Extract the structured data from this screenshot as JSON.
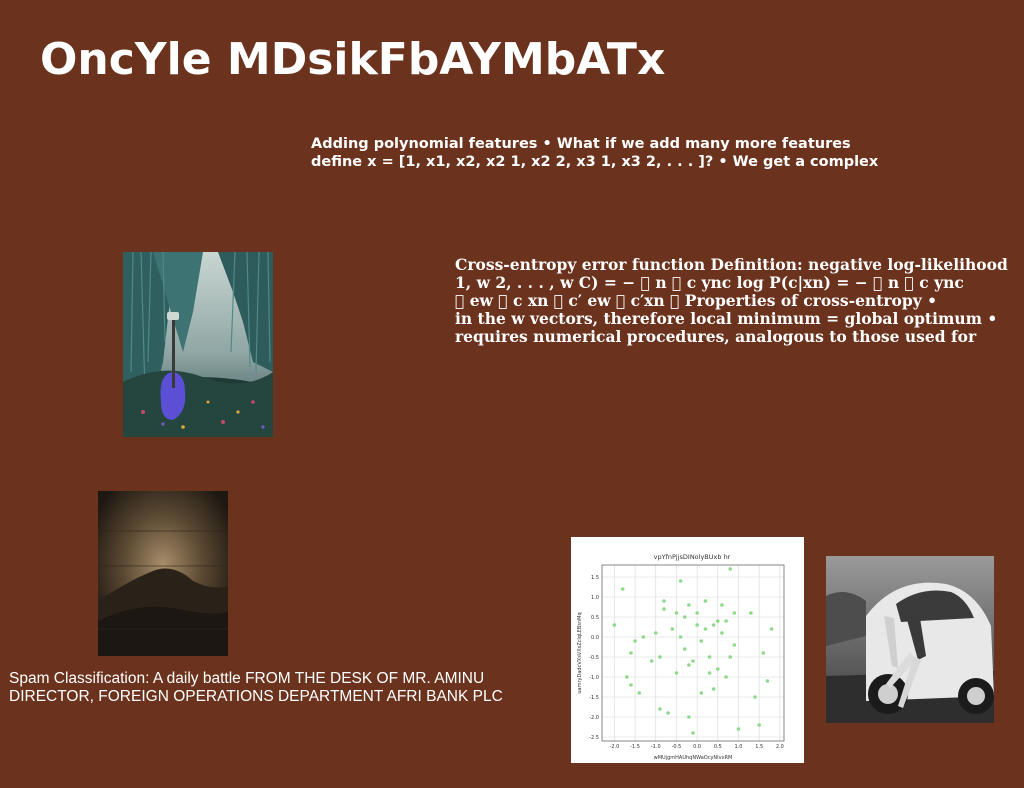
{
  "slide": {
    "title": "OncYle MDsikFbAYMbATx",
    "block1": {
      "lines": [
        "Adding polynomial features • What if we add many more features",
        "define x = [1, x1, x2, x2 1, x2 2, x3 1, x3 2, . . . ]? • We get a complex"
      ]
    },
    "block2": {
      "lines": [
        "Cross-entropy error function Definition: negative log-likelihood",
        "1, w 2, . . . , w C) = − \u0000 n \u0000 c ync log P(c|xn) = − \u0000 n \u0000 c ync",
        "\u0000 ew \u0000 c xn \u0000 c′ ew \u0000 c′xn \u0000 Properties of cross-entropy •",
        "in the w vectors, therefore local minimum = global optimum •",
        "requires numerical procedures, analogous to those used for"
      ]
    },
    "block3": {
      "lines": [
        "Spam Classification: A daily battle FROM THE DESK OF MR. AMINU",
        "DIRECTOR, FOREIGN OPERATIONS DEPARTMENT AFRI BANK PLC"
      ]
    },
    "images": [
      {
        "name": "forest-night-photo",
        "description": "willow trees with blue bean bag"
      },
      {
        "name": "mound-dust-photo",
        "description": "dark mound with dust"
      },
      {
        "name": "vintage-car-photo",
        "description": "woman in vintage sports car"
      }
    ],
    "colors": {
      "background": "#6b331e",
      "text": "#ffffff",
      "point": "#8fd98f"
    }
  },
  "chart_data": {
    "type": "scatter",
    "title": "vpYfnPjjsDINolyBUxb hr",
    "xlabel": "wMUjgmHAUhqNWaOcyNIvxRM",
    "ylabel": "uamryDadcVXsVXsZclqLEBsnMq",
    "xlim": [
      -2.3,
      2.1
    ],
    "ylim": [
      -2.6,
      1.8
    ],
    "xticks": [
      "-2.0",
      "-1.5",
      "-1.0",
      "-0.5",
      "0.0",
      "0.5",
      "1.0",
      "1.5",
      "2.0"
    ],
    "yticks": [
      "1.5",
      "1.0",
      "0.5",
      "0.0",
      "-0.5",
      "-1.0",
      "-1.5",
      "-2.0",
      "-2.5"
    ],
    "grid": true,
    "points": [
      [
        -1.8,
        1.2
      ],
      [
        -2.0,
        0.3
      ],
      [
        -1.6,
        -0.4
      ],
      [
        -1.5,
        -0.1
      ],
      [
        -1.7,
        -1.0
      ],
      [
        -1.6,
        -1.2
      ],
      [
        -1.3,
        0.0
      ],
      [
        -1.1,
        -0.6
      ],
      [
        -1.0,
        0.1
      ],
      [
        -0.9,
        -0.5
      ],
      [
        -0.8,
        0.9
      ],
      [
        -0.8,
        0.7
      ],
      [
        -0.9,
        -1.8
      ],
      [
        -0.7,
        -1.9
      ],
      [
        -0.6,
        0.2
      ],
      [
        -0.5,
        0.6
      ],
      [
        -0.4,
        1.4
      ],
      [
        -0.4,
        0.0
      ],
      [
        -0.3,
        -0.3
      ],
      [
        -0.2,
        0.8
      ],
      [
        -0.2,
        -0.7
      ],
      [
        -0.2,
        -2.0
      ],
      [
        0.0,
        0.6
      ],
      [
        0.0,
        0.3
      ],
      [
        0.1,
        -0.1
      ],
      [
        0.1,
        -1.4
      ],
      [
        0.2,
        0.9
      ],
      [
        0.2,
        0.2
      ],
      [
        0.3,
        -0.5
      ],
      [
        0.3,
        -0.9
      ],
      [
        0.4,
        0.3
      ],
      [
        0.5,
        -0.8
      ],
      [
        0.5,
        0.4
      ],
      [
        0.6,
        0.8
      ],
      [
        0.6,
        0.1
      ],
      [
        0.7,
        0.4
      ],
      [
        0.7,
        -1.0
      ],
      [
        0.8,
        1.7
      ],
      [
        0.8,
        -0.5
      ],
      [
        0.9,
        0.6
      ],
      [
        1.0,
        -2.3
      ],
      [
        1.3,
        0.6
      ],
      [
        1.4,
        -1.5
      ],
      [
        1.6,
        -0.4
      ],
      [
        1.7,
        -1.1
      ],
      [
        1.8,
        0.2
      ],
      [
        -0.5,
        -0.9
      ],
      [
        -1.4,
        -1.4
      ],
      [
        0.4,
        -1.3
      ],
      [
        -0.1,
        -0.6
      ],
      [
        0.9,
        -0.2
      ],
      [
        -0.3,
        0.5
      ],
      [
        1.5,
        -2.2
      ],
      [
        -0.1,
        -2.4
      ]
    ]
  }
}
